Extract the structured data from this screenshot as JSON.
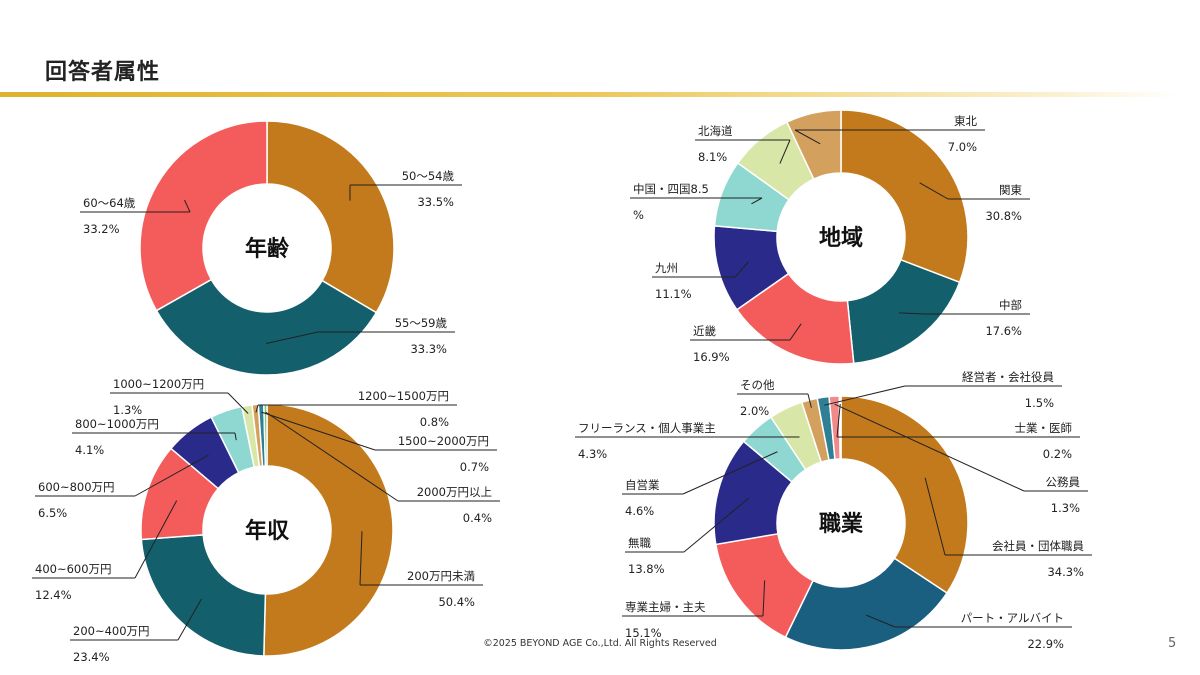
{
  "page": {
    "title": "回答者属性",
    "footer": "©2025 BEYOND AGE Co.,Ltd. All Rights Reserved",
    "page_number": "5"
  },
  "chart_data": [
    {
      "type": "pie",
      "title": "年齢",
      "slices": [
        {
          "label": "50～54歳",
          "value": 33.5,
          "value_text": "33.5%",
          "color": "#c27a1c"
        },
        {
          "label": "55～59歳",
          "value": 33.3,
          "value_text": "33.3%",
          "color": "#135f6c"
        },
        {
          "label": "60～64歳",
          "value": 33.2,
          "value_text": "33.2%",
          "color": "#f45b5b"
        }
      ]
    },
    {
      "type": "pie",
      "title": "地域",
      "slices": [
        {
          "label": "関東",
          "value": 30.8,
          "value_text": "30.8%",
          "color": "#c27a1c"
        },
        {
          "label": "中部",
          "value": 17.6,
          "value_text": "17.6%",
          "color": "#135f6c"
        },
        {
          "label": "近畿",
          "value": 16.9,
          "value_text": "16.9%",
          "color": "#f45b5b"
        },
        {
          "label": "九州",
          "value": 11.1,
          "value_text": "11.1%",
          "color": "#2a2a8a"
        },
        {
          "label": "中国・四国8.5",
          "value": 8.5,
          "value_text": "%",
          "color": "#8fd8d2"
        },
        {
          "label": "北海道",
          "value": 8.1,
          "value_text": "8.1%",
          "color": "#d8e6a8"
        },
        {
          "label": "東北",
          "value": 7.0,
          "value_text": "7.0%",
          "color": "#d4a05e"
        }
      ]
    },
    {
      "type": "pie",
      "title": "年収",
      "slices": [
        {
          "label": "200万円未満",
          "value": 50.4,
          "value_text": "50.4%",
          "color": "#c27a1c"
        },
        {
          "label": "200~400万円",
          "value": 23.4,
          "value_text": "23.4%",
          "color": "#135f6c"
        },
        {
          "label": "400~600万円",
          "value": 12.4,
          "value_text": "12.4%",
          "color": "#f45b5b"
        },
        {
          "label": "600~800万円",
          "value": 6.5,
          "value_text": "6.5%",
          "color": "#2a2a8a"
        },
        {
          "label": "800~1000万円",
          "value": 4.1,
          "value_text": "4.1%",
          "color": "#8fd8d2"
        },
        {
          "label": "1000~1200万円",
          "value": 1.3,
          "value_text": "1.3%",
          "color": "#d8e6a8"
        },
        {
          "label": "1200~1500万円",
          "value": 0.8,
          "value_text": "0.8%",
          "color": "#d4a05e"
        },
        {
          "label": "1500~2000万円",
          "value": 0.7,
          "value_text": "0.7%",
          "color": "#2f7f95"
        },
        {
          "label": "2000万円以上",
          "value": 0.4,
          "value_text": "0.4%",
          "color": "#7fc97f"
        }
      ]
    },
    {
      "type": "pie",
      "title": "職業",
      "slices": [
        {
          "label": "会社員・団体職員",
          "value": 34.3,
          "value_text": "34.3%",
          "color": "#c27a1c"
        },
        {
          "label": "パート・アルバイト",
          "value": 22.9,
          "value_text": "22.9%",
          "color": "#1a5f80"
        },
        {
          "label": "専業主婦・主夫",
          "value": 15.1,
          "value_text": "15.1%",
          "color": "#f45b5b"
        },
        {
          "label": "無職",
          "value": 13.8,
          "value_text": "13.8%",
          "color": "#2a2a8a"
        },
        {
          "label": "自営業",
          "value": 4.6,
          "value_text": "4.6%",
          "color": "#8fd8d2"
        },
        {
          "label": "フリーランス・個人事業主",
          "value": 4.3,
          "value_text": "4.3%",
          "color": "#d8e6a8"
        },
        {
          "label": "その他",
          "value": 2.0,
          "value_text": "2.0%",
          "color": "#d4a05e"
        },
        {
          "label": "経営者・会社役員",
          "value": 1.5,
          "value_text": "1.5%",
          "color": "#2f7f95"
        },
        {
          "label": "公務員",
          "value": 1.3,
          "value_text": "1.3%",
          "color": "#f28a8a"
        },
        {
          "label": "士業・医師",
          "value": 0.2,
          "value_text": "0.2%",
          "color": "#f7c6c6"
        }
      ]
    }
  ]
}
